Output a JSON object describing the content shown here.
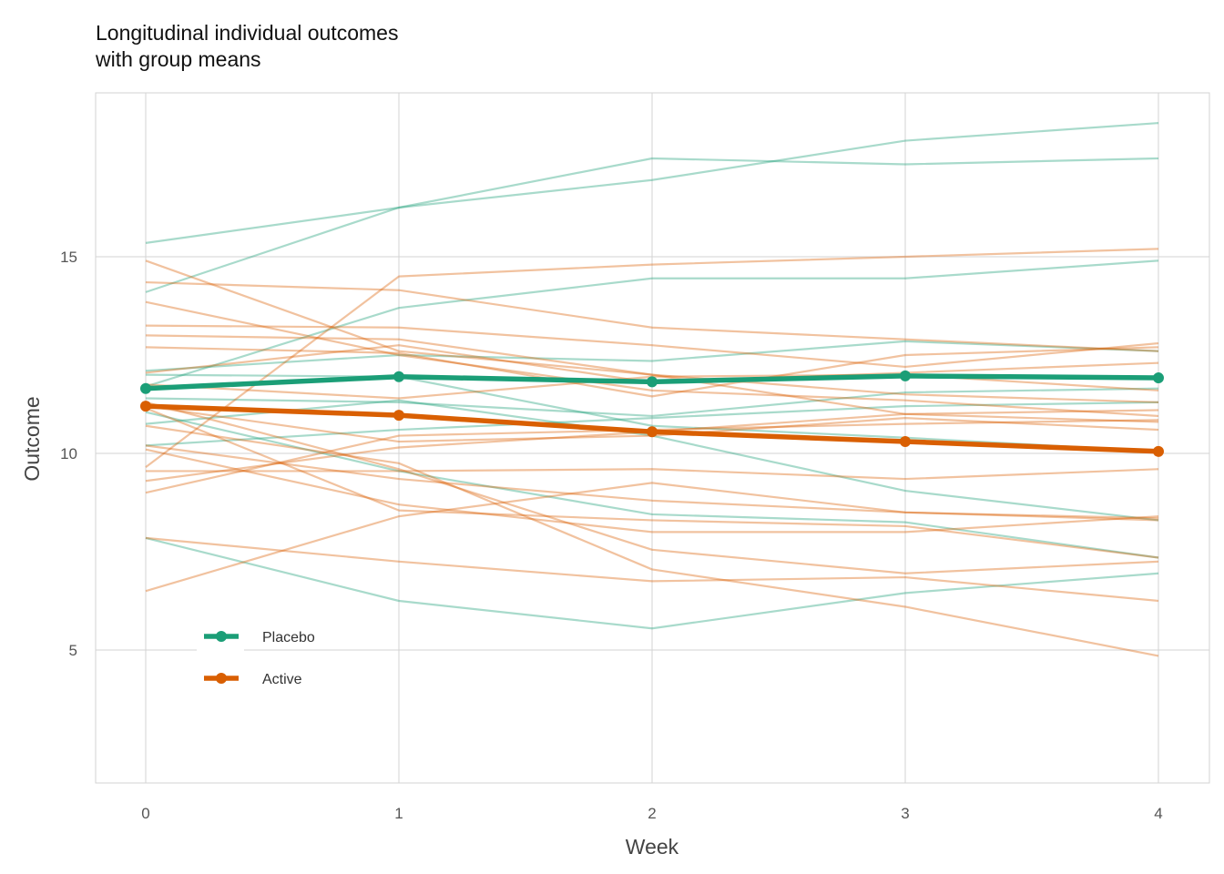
{
  "chart_data": {
    "type": "line",
    "title": "Longitudinal individual outcomes\nwith group means",
    "xlabel": "Week",
    "ylabel": "Outcome",
    "x": [
      0,
      1,
      2,
      3,
      4
    ],
    "x_ticks": [
      0,
      1,
      2,
      3,
      4
    ],
    "y_ticks": [
      5,
      10,
      15
    ],
    "xlim": [
      -0.2,
      4.2
    ],
    "ylim": [
      1.7,
      19.3
    ],
    "grid": true,
    "legend_position": "bottom-left inside",
    "colors": {
      "Placebo": "#1b9e77",
      "Active": "#d95f02"
    },
    "series": [
      {
        "name": "Placebo",
        "values": [
          11.65,
          11.95,
          11.82,
          11.97,
          11.92
        ]
      },
      {
        "name": "Active",
        "values": [
          11.2,
          10.97,
          10.55,
          10.3,
          10.05
        ]
      }
    ],
    "individual_lines": [
      {
        "group": "Placebo",
        "values": [
          15.35,
          16.25,
          17.5,
          17.35,
          17.5
        ]
      },
      {
        "group": "Placebo",
        "values": [
          14.1,
          16.25,
          16.95,
          17.95,
          18.4
        ]
      },
      {
        "group": "Placebo",
        "values": [
          11.7,
          13.7,
          14.45,
          14.45,
          14.9
        ]
      },
      {
        "group": "Placebo",
        "values": [
          12.1,
          12.5,
          12.35,
          12.85,
          12.6
        ]
      },
      {
        "group": "Placebo",
        "values": [
          11.4,
          11.3,
          10.95,
          11.55,
          11.65
        ]
      },
      {
        "group": "Placebo",
        "values": [
          12.0,
          11.95,
          10.7,
          10.4,
          10.05
        ]
      },
      {
        "group": "Placebo",
        "values": [
          10.2,
          10.6,
          10.9,
          11.2,
          11.3
        ]
      },
      {
        "group": "Placebo",
        "values": [
          11.05,
          9.55,
          8.45,
          8.25,
          7.35
        ]
      },
      {
        "group": "Placebo",
        "values": [
          10.75,
          11.35,
          10.45,
          9.05,
          8.3
        ]
      },
      {
        "group": "Placebo",
        "values": [
          7.85,
          6.25,
          5.55,
          6.45,
          6.95
        ]
      },
      {
        "group": "Active",
        "values": [
          14.9,
          12.6,
          12.0,
          11.5,
          11.3
        ]
      },
      {
        "group": "Active",
        "values": [
          14.35,
          14.15,
          13.2,
          12.9,
          12.6
        ]
      },
      {
        "group": "Active",
        "values": [
          13.85,
          12.5,
          11.6,
          11.35,
          10.95
        ]
      },
      {
        "group": "Active",
        "values": [
          13.25,
          13.2,
          12.75,
          12.2,
          12.8
        ]
      },
      {
        "group": "Active",
        "values": [
          13.0,
          12.9,
          12.0,
          11.0,
          10.8
        ]
      },
      {
        "group": "Active",
        "values": [
          12.7,
          12.55,
          11.45,
          12.5,
          12.7
        ]
      },
      {
        "group": "Active",
        "values": [
          12.05,
          12.75,
          11.8,
          12.05,
          12.3
        ]
      },
      {
        "group": "Active",
        "values": [
          9.65,
          14.5,
          14.8,
          15.0,
          15.2
        ]
      },
      {
        "group": "Active",
        "values": [
          9.0,
          10.45,
          10.6,
          10.75,
          10.85
        ]
      },
      {
        "group": "Active",
        "values": [
          9.3,
          10.15,
          10.55,
          11.0,
          11.1
        ]
      },
      {
        "group": "Active",
        "values": [
          9.55,
          9.55,
          9.6,
          9.35,
          9.6
        ]
      },
      {
        "group": "Active",
        "values": [
          10.2,
          9.35,
          8.8,
          8.5,
          8.35
        ]
      },
      {
        "group": "Active",
        "values": [
          11.3,
          9.6,
          7.55,
          6.95,
          7.25
        ]
      },
      {
        "group": "Active",
        "values": [
          10.1,
          8.7,
          8.0,
          8.0,
          8.4
        ]
      },
      {
        "group": "Active",
        "values": [
          7.85,
          7.25,
          6.75,
          6.85,
          6.25
        ]
      },
      {
        "group": "Active",
        "values": [
          6.5,
          8.4,
          9.25,
          8.5,
          8.3
        ]
      },
      {
        "group": "Active",
        "values": [
          10.7,
          9.75,
          7.05,
          6.1,
          4.85
        ]
      },
      {
        "group": "Active",
        "values": [
          11.15,
          8.55,
          8.3,
          8.15,
          7.35
        ]
      },
      {
        "group": "Active",
        "values": [
          11.75,
          11.4,
          11.95,
          12.0,
          11.6
        ]
      },
      {
        "group": "Active",
        "values": [
          11.2,
          10.3,
          10.45,
          10.9,
          10.6
        ]
      }
    ]
  }
}
